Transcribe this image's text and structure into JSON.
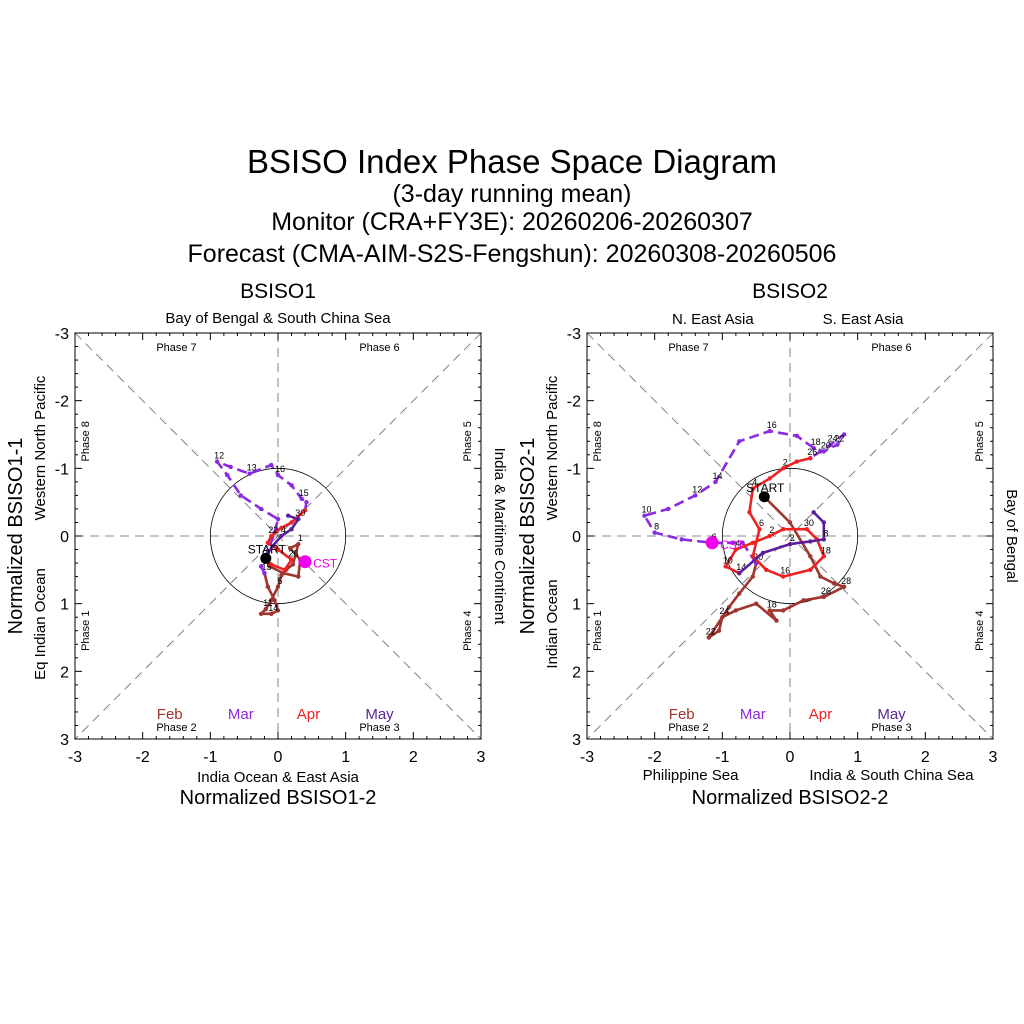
{
  "title": {
    "main": "BSISO Index Phase Space Diagram",
    "line2": "(3-day running mean)",
    "line3": "Monitor (CRA+FY3E): 20260206-20260307",
    "line4": "Forecast (CMA-AIM-S2S-Fengshun): 20260308-20260506"
  },
  "colors": {
    "feb": "#a0342e",
    "mar": "#8a2be2",
    "apr": "#ee2222",
    "may": "#5b1f9e",
    "start": "#000000",
    "cst": "#ee00ee",
    "guide": "#666666"
  },
  "month_labels": [
    "Feb",
    "Mar",
    "Apr",
    "May"
  ],
  "start_label": "START",
  "cst_label": "CST",
  "chart_data": [
    {
      "type": "scatter",
      "panel_title": "BSISO1",
      "xlabel": "Normalized BSISO1-2",
      "ylabel": "Normalized BSISO1-1",
      "xlim": [
        -3,
        3
      ],
      "ylim": [
        -3,
        3
      ],
      "y_inverted": true,
      "ticks": [
        -3,
        -2,
        -1,
        0,
        1,
        2,
        3
      ],
      "region_top": [
        "Bay of Bengal & South China Sea"
      ],
      "region_bottom": [
        "India Ocean & East Asia"
      ],
      "region_left": [
        "Western North Pacific",
        "Eq Indian Ocean"
      ],
      "region_right": [
        "India & Maritime Continent"
      ],
      "phases": [
        "Phase 1",
        "Phase 2",
        "Phase 3",
        "Phase 4",
        "Phase 5",
        "Phase 6",
        "Phase 7",
        "Phase 8"
      ],
      "start": [
        -0.18,
        0.33
      ],
      "cst": [
        0.4,
        0.38
      ],
      "series": [
        {
          "name": "Feb",
          "points": [
            [
              -0.18,
              0.33
            ],
            [
              -0.12,
              0.45
            ],
            [
              0.08,
              0.55
            ],
            [
              0.3,
              0.6
            ],
            [
              0.33,
              0.35
            ],
            [
              0.18,
              0.18
            ],
            [
              0.3,
              0.12
            ],
            [
              0.22,
              0.42
            ],
            [
              0.12,
              0.5
            ],
            [
              0.05,
              0.58
            ],
            [
              0.0,
              0.75
            ],
            [
              -0.1,
              0.95
            ],
            [
              -0.18,
              1.08
            ],
            [
              -0.25,
              1.15
            ],
            [
              -0.1,
              1.15
            ],
            [
              0.0,
              1.1
            ],
            [
              -0.05,
              0.95
            ],
            [
              -0.15,
              0.75
            ],
            [
              -0.2,
              0.55
            ]
          ],
          "labels": [
            [
              6,
              1
            ],
            [
              10,
              5
            ],
            [
              12,
              11
            ],
            [
              14,
              14
            ],
            [
              18,
              15
            ]
          ]
        },
        {
          "name": "Mar",
          "points": [
            [
              -0.2,
              0.55
            ],
            [
              -0.25,
              0.45
            ],
            [
              -0.15,
              0.22
            ],
            [
              -0.05,
              -0.05
            ],
            [
              0.0,
              -0.25
            ],
            [
              -0.25,
              -0.4
            ],
            [
              -0.55,
              -0.6
            ],
            [
              -0.75,
              -0.9
            ],
            [
              -0.9,
              -1.1
            ],
            [
              -0.7,
              -1.02
            ],
            [
              -0.42,
              -0.92
            ],
            [
              -0.1,
              -1.05
            ],
            [
              0.0,
              -0.9
            ],
            [
              0.2,
              -0.75
            ],
            [
              0.35,
              -0.55
            ],
            [
              0.42,
              -0.5
            ],
            [
              0.4,
              -0.38
            ]
          ],
          "labels": [
            [
              8,
              12
            ],
            [
              10,
              13
            ],
            [
              12,
              16
            ],
            [
              14,
              15
            ]
          ]
        },
        {
          "name": "Apr",
          "points": [
            [
              0.4,
              -0.38
            ],
            [
              0.2,
              -0.2
            ],
            [
              0.05,
              -0.12
            ],
            [
              -0.1,
              0.0
            ],
            [
              -0.15,
              0.1
            ],
            [
              0.0,
              0.2
            ],
            [
              0.2,
              0.35
            ],
            [
              0.1,
              0.5
            ],
            [
              -0.1,
              0.42
            ],
            [
              -0.2,
              0.33
            ]
          ],
          "labels": [
            [
              3,
              22
            ],
            [
              6,
              26
            ]
          ]
        },
        {
          "name": "May",
          "points": [
            [
              -0.2,
              0.33
            ],
            [
              -0.08,
              0.15
            ],
            [
              0.05,
              0.0
            ],
            [
              0.2,
              -0.1
            ],
            [
              0.3,
              -0.25
            ],
            [
              0.15,
              -0.3
            ]
          ],
          "labels": [
            [
              2,
              4
            ],
            [
              4,
              30
            ]
          ]
        }
      ]
    },
    {
      "type": "scatter",
      "panel_title": "BSISO2",
      "xlabel": "Normalized BSISO2-2",
      "ylabel": "Normalized BSISO2-1",
      "xlim": [
        -3,
        3
      ],
      "ylim": [
        -3,
        3
      ],
      "y_inverted": true,
      "ticks": [
        -3,
        -2,
        -1,
        0,
        1,
        2,
        3
      ],
      "region_top": [
        "N. East Asia",
        "S. East Asia"
      ],
      "region_bottom": [
        "Philippine Sea",
        "India & South China Sea"
      ],
      "region_left": [
        "Western North Pacific",
        "Indian Ocean"
      ],
      "region_right": [
        "Bay of Bengal"
      ],
      "phases": [
        "Phase 1",
        "Phase 2",
        "Phase 3",
        "Phase 4",
        "Phase 5",
        "Phase 6",
        "Phase 7",
        "Phase 8"
      ],
      "start": [
        -0.38,
        -0.58
      ],
      "cst": [
        -1.15,
        0.1
      ],
      "series": [
        {
          "name": "Feb",
          "points": [
            [
              -0.38,
              -0.58
            ],
            [
              0.0,
              -0.2
            ],
            [
              0.3,
              0.3
            ],
            [
              0.45,
              0.6
            ],
            [
              0.65,
              0.7
            ],
            [
              0.8,
              0.75
            ],
            [
              0.5,
              0.9
            ],
            [
              0.2,
              0.95
            ],
            [
              -0.1,
              1.1
            ],
            [
              -0.3,
              1.1
            ],
            [
              -0.2,
              1.25
            ],
            [
              -0.5,
              1.0
            ],
            [
              -0.8,
              1.1
            ],
            [
              -1.0,
              1.2
            ],
            [
              -1.05,
              1.4
            ],
            [
              -1.2,
              1.5
            ],
            [
              -0.9,
              1.05
            ],
            [
              -0.75,
              0.85
            ],
            [
              -0.55,
              0.6
            ],
            [
              -0.5,
              0.4
            ]
          ],
          "labels": [
            [
              5,
              28
            ],
            [
              6,
              26
            ],
            [
              9,
              18
            ],
            [
              13,
              24
            ],
            [
              15,
              22
            ],
            [
              19,
              20
            ]
          ]
        },
        {
          "name": "Mar",
          "points": [
            [
              -0.5,
              0.4
            ],
            [
              -0.7,
              0.1
            ],
            [
              -1.15,
              0.1
            ],
            [
              -1.6,
              0.05
            ],
            [
              -2.0,
              -0.05
            ],
            [
              -2.15,
              -0.3
            ],
            [
              -1.8,
              -0.4
            ],
            [
              -1.4,
              -0.6
            ],
            [
              -1.1,
              -0.8
            ],
            [
              -0.75,
              -1.4
            ],
            [
              -0.3,
              -1.55
            ],
            [
              0.1,
              -1.48
            ],
            [
              0.35,
              -1.3
            ],
            [
              0.5,
              -1.25
            ],
            [
              0.7,
              -1.35
            ],
            [
              0.8,
              -1.5
            ],
            [
              0.6,
              -1.35
            ],
            [
              0.45,
              -1.25
            ],
            [
              0.3,
              -1.15
            ]
          ],
          "labels": [
            [
              2,
              6
            ],
            [
              4,
              8
            ],
            [
              5,
              10
            ],
            [
              7,
              12
            ],
            [
              8,
              14
            ],
            [
              10,
              16
            ],
            [
              12,
              18
            ],
            [
              13,
              20
            ],
            [
              14,
              22
            ],
            [
              16,
              24
            ],
            [
              18,
              26
            ]
          ]
        },
        {
          "name": "Apr",
          "points": [
            [
              0.3,
              -1.15
            ],
            [
              0.1,
              -1.1
            ],
            [
              -0.1,
              -1.0
            ],
            [
              -0.3,
              -0.85
            ],
            [
              -0.55,
              -0.7
            ],
            [
              -0.6,
              -0.35
            ],
            [
              -0.45,
              -0.1
            ],
            [
              -0.55,
              0.3
            ],
            [
              -0.35,
              0.5
            ],
            [
              -0.1,
              0.6
            ],
            [
              0.3,
              0.5
            ],
            [
              0.5,
              0.3
            ],
            [
              0.4,
              0.05
            ],
            [
              0.25,
              -0.1
            ],
            [
              -0.1,
              -0.1
            ],
            [
              -0.3,
              0.0
            ],
            [
              -0.55,
              0.1
            ],
            [
              -0.8,
              0.2
            ],
            [
              -0.95,
              0.45
            ],
            [
              -0.75,
              0.55
            ]
          ],
          "labels": [
            [
              2,
              2
            ],
            [
              4,
              4
            ],
            [
              6,
              6
            ],
            [
              9,
              16
            ],
            [
              11,
              18
            ],
            [
              13,
              30
            ],
            [
              15,
              2
            ],
            [
              17,
              4
            ],
            [
              18,
              10
            ],
            [
              19,
              14
            ]
          ]
        },
        {
          "name": "May",
          "points": [
            [
              -0.75,
              0.55
            ],
            [
              -0.4,
              0.25
            ],
            [
              0.0,
              0.12
            ],
            [
              0.3,
              0.08
            ],
            [
              0.5,
              0.05
            ],
            [
              0.5,
              -0.2
            ],
            [
              0.35,
              -0.35
            ]
          ],
          "labels": [
            [
              2,
              2
            ],
            [
              4,
              8
            ]
          ]
        }
      ]
    }
  ]
}
